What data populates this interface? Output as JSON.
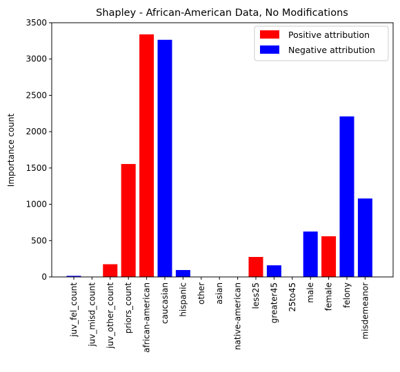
{
  "chart_data": {
    "type": "bar",
    "title": "Shapley - African-American Data, No Modifications",
    "xlabel": "",
    "ylabel": "Importance count",
    "ylim": [
      0,
      3500
    ],
    "yticks": [
      0,
      500,
      1000,
      1500,
      2000,
      2500,
      3000,
      3500
    ],
    "grid": false,
    "legend_position": "top-right",
    "legend": [
      {
        "label": "Positive attribution",
        "color": "#ff0000"
      },
      {
        "label": "Negative attribution",
        "color": "#0000ff"
      }
    ],
    "categories": [
      "juv_fel_count",
      "juv_misd_count",
      "juv_other_count",
      "priors_count",
      "african-american",
      "caucasian",
      "hispanic",
      "other",
      "asian",
      "native-american",
      "less25",
      "greater45",
      "25to45",
      "male",
      "female",
      "felony",
      "misdemeanor"
    ],
    "values": [
      15,
      0,
      175,
      1555,
      3340,
      3265,
      95,
      0,
      0,
      0,
      275,
      160,
      0,
      625,
      560,
      2210,
      1080
    ],
    "colors": [
      "#0000ff",
      "#ff0000",
      "#ff0000",
      "#ff0000",
      "#ff0000",
      "#0000ff",
      "#0000ff",
      "#ff0000",
      "#ff0000",
      "#ff0000",
      "#ff0000",
      "#0000ff",
      "#ff0000",
      "#0000ff",
      "#ff0000",
      "#0000ff",
      "#0000ff"
    ]
  }
}
